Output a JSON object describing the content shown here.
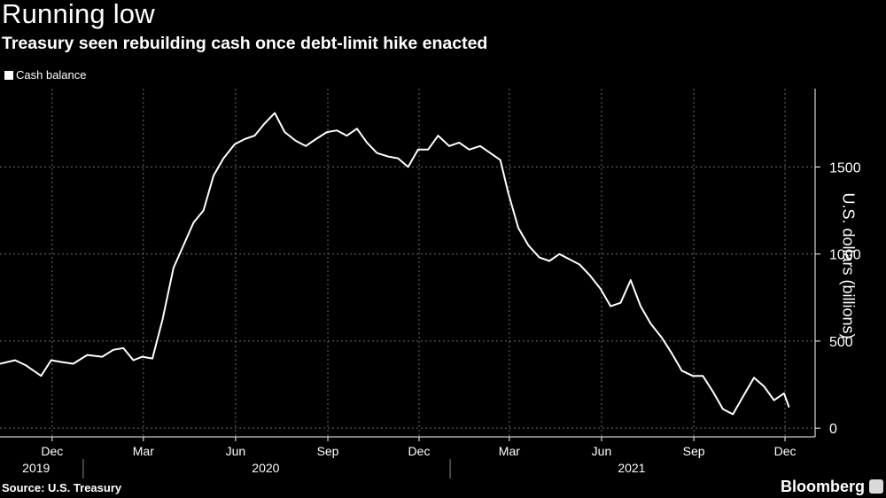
{
  "header": {
    "title": "Running low",
    "subtitle": "Treasury seen rebuilding cash once debt-limit hike enacted"
  },
  "legend": {
    "series_label": "Cash balance"
  },
  "footer": {
    "source": "Source: U.S. Treasury",
    "brand": "Bloomberg"
  },
  "colors": {
    "background": "#000000",
    "line": "#ffffff",
    "grid": "#6e6e6e"
  },
  "chart_data": {
    "type": "line",
    "title": "Running low",
    "subtitle": "Treasury seen rebuilding cash once debt-limit hike enacted",
    "ylabel": "U.S. dollars (billions)",
    "xlabel": "",
    "ylim": [
      -50,
      1950
    ],
    "yticks": [
      0,
      500,
      1000,
      1500
    ],
    "y_axis_side": "right",
    "x_range": [
      "2019-10-10",
      "2021-12-31"
    ],
    "month_ticks": [
      {
        "label": "Dec",
        "date": "2019-12-01"
      },
      {
        "label": "Mar",
        "date": "2020-03-01"
      },
      {
        "label": "Jun",
        "date": "2020-06-01"
      },
      {
        "label": "Sep",
        "date": "2020-09-01"
      },
      {
        "label": "Dec",
        "date": "2020-12-01"
      },
      {
        "label": "Mar",
        "date": "2021-03-01"
      },
      {
        "label": "Jun",
        "date": "2021-06-01"
      },
      {
        "label": "Sep",
        "date": "2021-09-01"
      },
      {
        "label": "Dec",
        "date": "2021-12-01"
      }
    ],
    "year_labels": [
      {
        "label": "2019",
        "date": "2019-11-15"
      },
      {
        "label": "2020",
        "date": "2020-07-01"
      },
      {
        "label": "2021",
        "date": "2021-07-01"
      }
    ],
    "year_dividers": [
      "2020-01-01",
      "2021-01-01"
    ],
    "grid": true,
    "legend_position": "top-left",
    "series": [
      {
        "name": "Cash balance",
        "x": [
          "2019-10-10",
          "2019-10-25",
          "2019-11-05",
          "2019-11-20",
          "2019-11-30",
          "2019-12-10",
          "2019-12-22",
          "2020-01-05",
          "2020-01-20",
          "2020-01-31",
          "2020-02-10",
          "2020-02-20",
          "2020-02-29",
          "2020-03-10",
          "2020-03-20",
          "2020-03-31",
          "2020-04-10",
          "2020-04-20",
          "2020-04-30",
          "2020-05-10",
          "2020-05-20",
          "2020-05-31",
          "2020-06-10",
          "2020-06-20",
          "2020-06-30",
          "2020-07-10",
          "2020-07-20",
          "2020-07-31",
          "2020-08-10",
          "2020-08-20",
          "2020-08-31",
          "2020-09-10",
          "2020-09-20",
          "2020-09-30",
          "2020-10-10",
          "2020-10-20",
          "2020-10-31",
          "2020-11-10",
          "2020-11-20",
          "2020-11-30",
          "2020-12-10",
          "2020-12-20",
          "2020-12-31",
          "2021-01-10",
          "2021-01-20",
          "2021-01-31",
          "2021-02-10",
          "2021-02-20",
          "2021-02-28",
          "2021-03-10",
          "2021-03-20",
          "2021-03-31",
          "2021-04-10",
          "2021-04-20",
          "2021-04-30",
          "2021-05-10",
          "2021-05-20",
          "2021-05-31",
          "2021-06-10",
          "2021-06-20",
          "2021-06-30",
          "2021-07-10",
          "2021-07-20",
          "2021-07-31",
          "2021-08-10",
          "2021-08-20",
          "2021-08-31",
          "2021-09-10",
          "2021-09-20",
          "2021-09-30",
          "2021-10-10",
          "2021-10-20",
          "2021-10-31",
          "2021-11-10",
          "2021-11-20",
          "2021-11-30",
          "2021-12-05"
        ],
        "y": [
          370,
          390,
          360,
          300,
          390,
          380,
          370,
          420,
          410,
          450,
          460,
          390,
          410,
          400,
          620,
          920,
          1050,
          1180,
          1250,
          1450,
          1550,
          1630,
          1660,
          1680,
          1750,
          1810,
          1700,
          1650,
          1620,
          1660,
          1700,
          1710,
          1680,
          1720,
          1640,
          1580,
          1560,
          1550,
          1500,
          1600,
          1600,
          1680,
          1620,
          1640,
          1600,
          1620,
          1580,
          1540,
          1350,
          1150,
          1050,
          980,
          960,
          1000,
          970,
          940,
          880,
          800,
          700,
          720,
          850,
          700,
          600,
          520,
          430,
          330,
          300,
          300,
          210,
          110,
          80,
          180,
          290,
          240,
          160,
          200,
          120
        ]
      }
    ]
  }
}
